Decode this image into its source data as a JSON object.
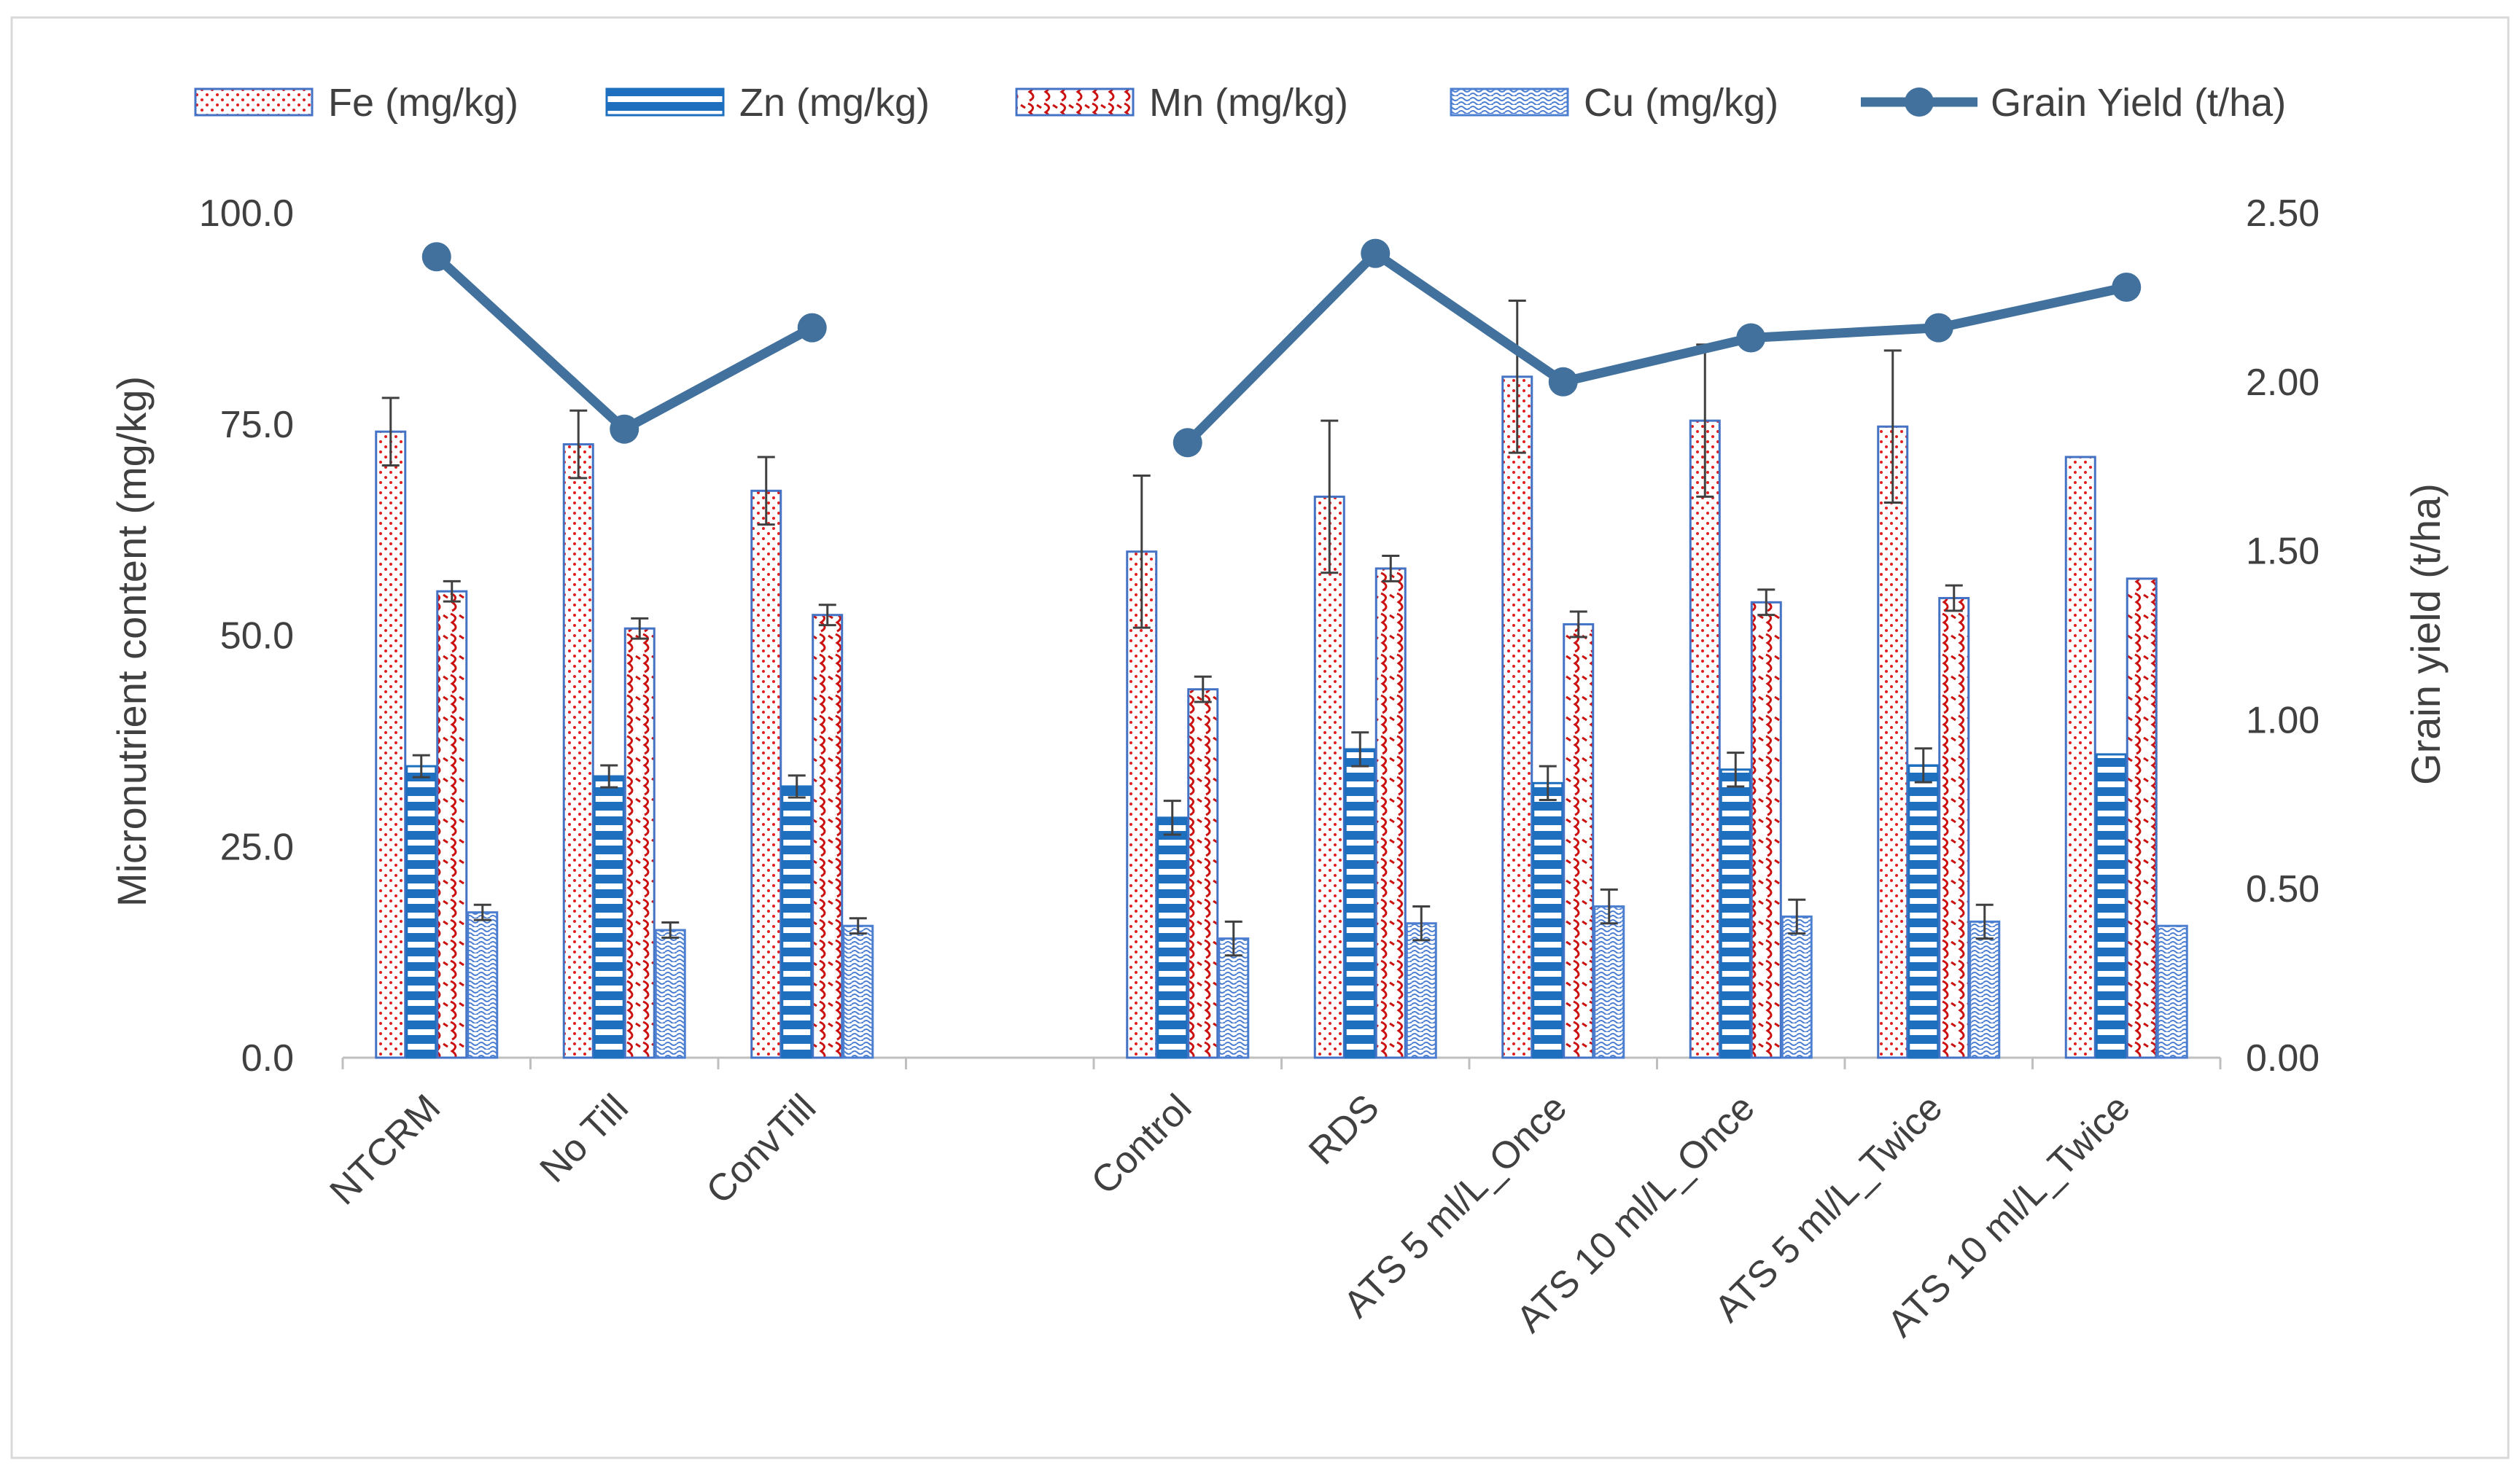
{
  "chart_data": {
    "type": "bar",
    "categories": [
      "NTCRM",
      "No Till",
      "ConvTill",
      "",
      "Control",
      "RDS",
      "ATS 5 ml/L_Once",
      "ATS 10 ml/L_Once",
      "ATS 5 ml/L_Twice",
      "ATS 10 ml/L_Twice"
    ],
    "series": [
      {
        "name": "Fe (mg/kg)",
        "type": "bar",
        "axis": "left",
        "values": [
          74.1,
          72.6,
          67.1,
          null,
          59.9,
          66.4,
          80.6,
          75.4,
          74.7,
          71.1
        ],
        "errors": [
          4.0,
          4.0,
          4.0,
          null,
          9.0,
          9.0,
          9.0,
          9.0,
          9.0,
          null
        ]
      },
      {
        "name": "Zn (mg/kg)",
        "type": "bar",
        "axis": "left",
        "values": [
          34.5,
          33.3,
          32.1,
          null,
          28.4,
          36.5,
          32.5,
          34.1,
          34.6,
          35.9
        ],
        "errors": [
          1.3,
          1.3,
          1.3,
          null,
          2.0,
          2.0,
          2.0,
          2.0,
          2.0,
          null
        ]
      },
      {
        "name": "Mn (mg/kg)",
        "type": "bar",
        "axis": "left",
        "values": [
          55.2,
          50.8,
          52.4,
          null,
          43.6,
          57.9,
          51.3,
          53.9,
          54.4,
          56.7
        ],
        "errors": [
          1.2,
          1.2,
          1.2,
          null,
          1.5,
          1.5,
          1.5,
          1.5,
          1.5,
          null
        ]
      },
      {
        "name": "Cu (mg/kg)",
        "type": "bar",
        "axis": "left",
        "values": [
          17.2,
          15.1,
          15.6,
          null,
          14.1,
          15.9,
          17.9,
          16.7,
          16.1,
          15.6
        ],
        "errors": [
          0.9,
          0.9,
          0.9,
          null,
          2.0,
          2.0,
          2.0,
          2.0,
          2.0,
          null
        ]
      },
      {
        "name": "Grain Yield (t/ha)",
        "type": "line",
        "axis": "right",
        "values": [
          2.37,
          1.86,
          2.16,
          null,
          1.82,
          2.38,
          2.0,
          2.13,
          2.16,
          2.28
        ]
      }
    ],
    "title": "",
    "ylabel": "Micronutrient content (mg/kg)",
    "y2label": "Grain yield (t/ha)",
    "ylim": [
      0,
      100
    ],
    "y2lim": [
      0,
      2.5
    ],
    "yticks": [
      "0.0",
      "25.0",
      "50.0",
      "75.0",
      "100.0"
    ],
    "y2ticks": [
      "0.00",
      "0.50",
      "1.00",
      "1.50",
      "2.00",
      "2.50"
    ],
    "grid": false,
    "legend_position": "top",
    "colors": {
      "fe_outline": "#4472c4",
      "fe_dots": "#e02020",
      "zn": "#1f6fbf",
      "mn_outline": "#4472c4",
      "mn_wave": "#cc1111",
      "cu": "#4d7fd1",
      "line": "#41719c",
      "axis": "#bfbfbf",
      "error": "#404040",
      "text": "#404040"
    }
  }
}
